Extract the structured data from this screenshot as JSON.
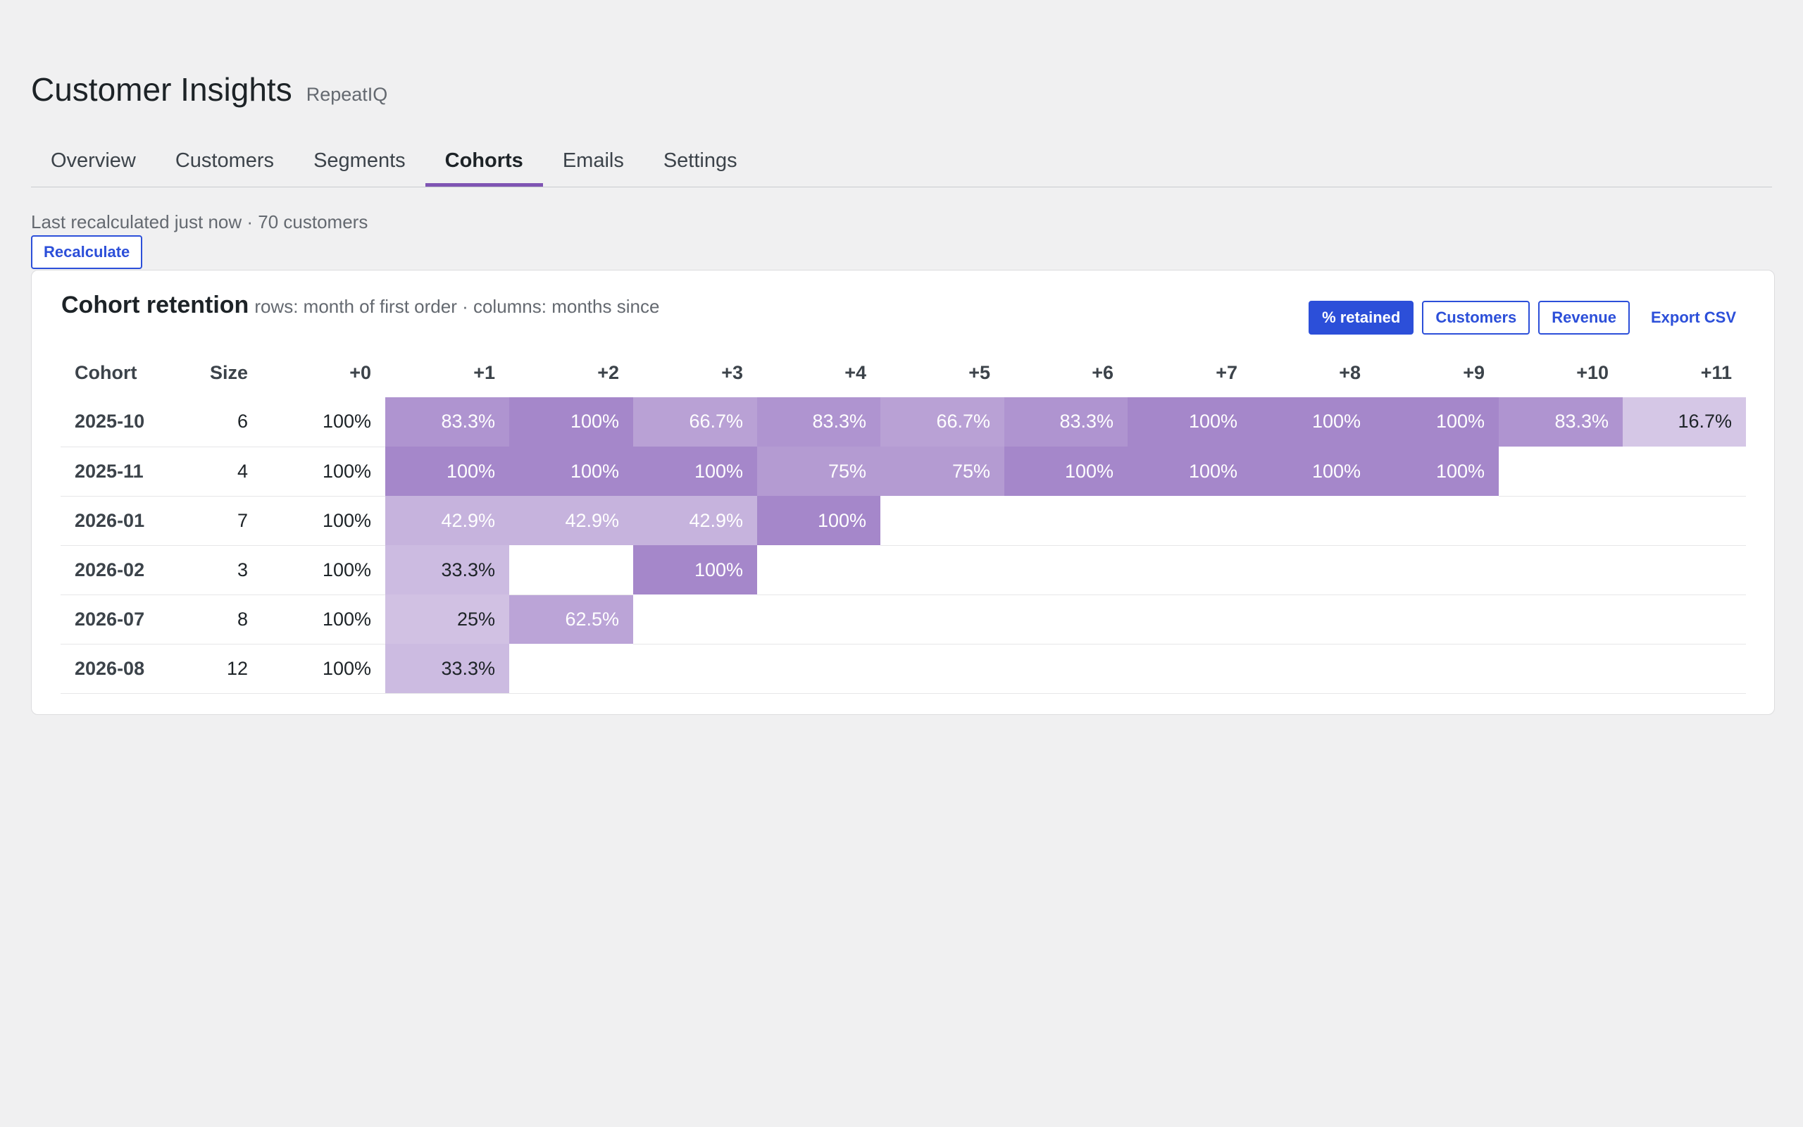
{
  "header": {
    "title": "Customer Insights",
    "brand": "RepeatIQ"
  },
  "tabs": [
    {
      "label": "Overview",
      "active": false
    },
    {
      "label": "Customers",
      "active": false
    },
    {
      "label": "Segments",
      "active": false
    },
    {
      "label": "Cohorts",
      "active": true
    },
    {
      "label": "Emails",
      "active": false
    },
    {
      "label": "Settings",
      "active": false
    }
  ],
  "status": {
    "text": "Last recalculated just now · 70 customers",
    "recalculate_label": "Recalculate"
  },
  "panel": {
    "title": "Cohort retention",
    "subtitle": "rows: month of first order · columns: months since",
    "view_buttons": [
      {
        "label": "% retained",
        "active": true
      },
      {
        "label": "Customers",
        "active": false
      },
      {
        "label": "Revenue",
        "active": false
      }
    ],
    "export_label": "Export CSV"
  },
  "colors": {
    "accent": "#2c4fd9",
    "tab_active": "#7f54b3",
    "heat_base": "#7f54b3"
  },
  "table": {
    "columns": [
      "Cohort",
      "Size",
      "+0",
      "+1",
      "+2",
      "+3",
      "+4",
      "+5",
      "+6",
      "+7",
      "+8",
      "+9",
      "+10",
      "+11"
    ],
    "rows": [
      {
        "cohort": "2025-10",
        "size": "6",
        "retention": [
          "100%",
          "83.3%",
          "100%",
          "66.7%",
          "83.3%",
          "66.7%",
          "83.3%",
          "100%",
          "100%",
          "100%",
          "83.3%",
          "16.7%"
        ]
      },
      {
        "cohort": "2025-11",
        "size": "4",
        "retention": [
          "100%",
          "100%",
          "100%",
          "100%",
          "75%",
          "75%",
          "100%",
          "100%",
          "100%",
          "100%",
          "",
          ""
        ]
      },
      {
        "cohort": "2026-01",
        "size": "7",
        "retention": [
          "100%",
          "42.9%",
          "42.9%",
          "42.9%",
          "100%",
          "",
          "",
          "",
          "",
          "",
          "",
          ""
        ]
      },
      {
        "cohort": "2026-02",
        "size": "3",
        "retention": [
          "100%",
          "33.3%",
          "",
          "100%",
          "",
          "",
          "",
          "",
          "",
          "",
          "",
          ""
        ]
      },
      {
        "cohort": "2026-07",
        "size": "8",
        "retention": [
          "100%",
          "25%",
          "62.5%",
          "",
          "",
          "",
          "",
          "",
          "",
          "",
          "",
          ""
        ]
      },
      {
        "cohort": "2026-08",
        "size": "12",
        "retention": [
          "100%",
          "33.3%",
          "",
          "",
          "",
          "",
          "",
          "",
          "",
          "",
          "",
          ""
        ]
      }
    ]
  }
}
